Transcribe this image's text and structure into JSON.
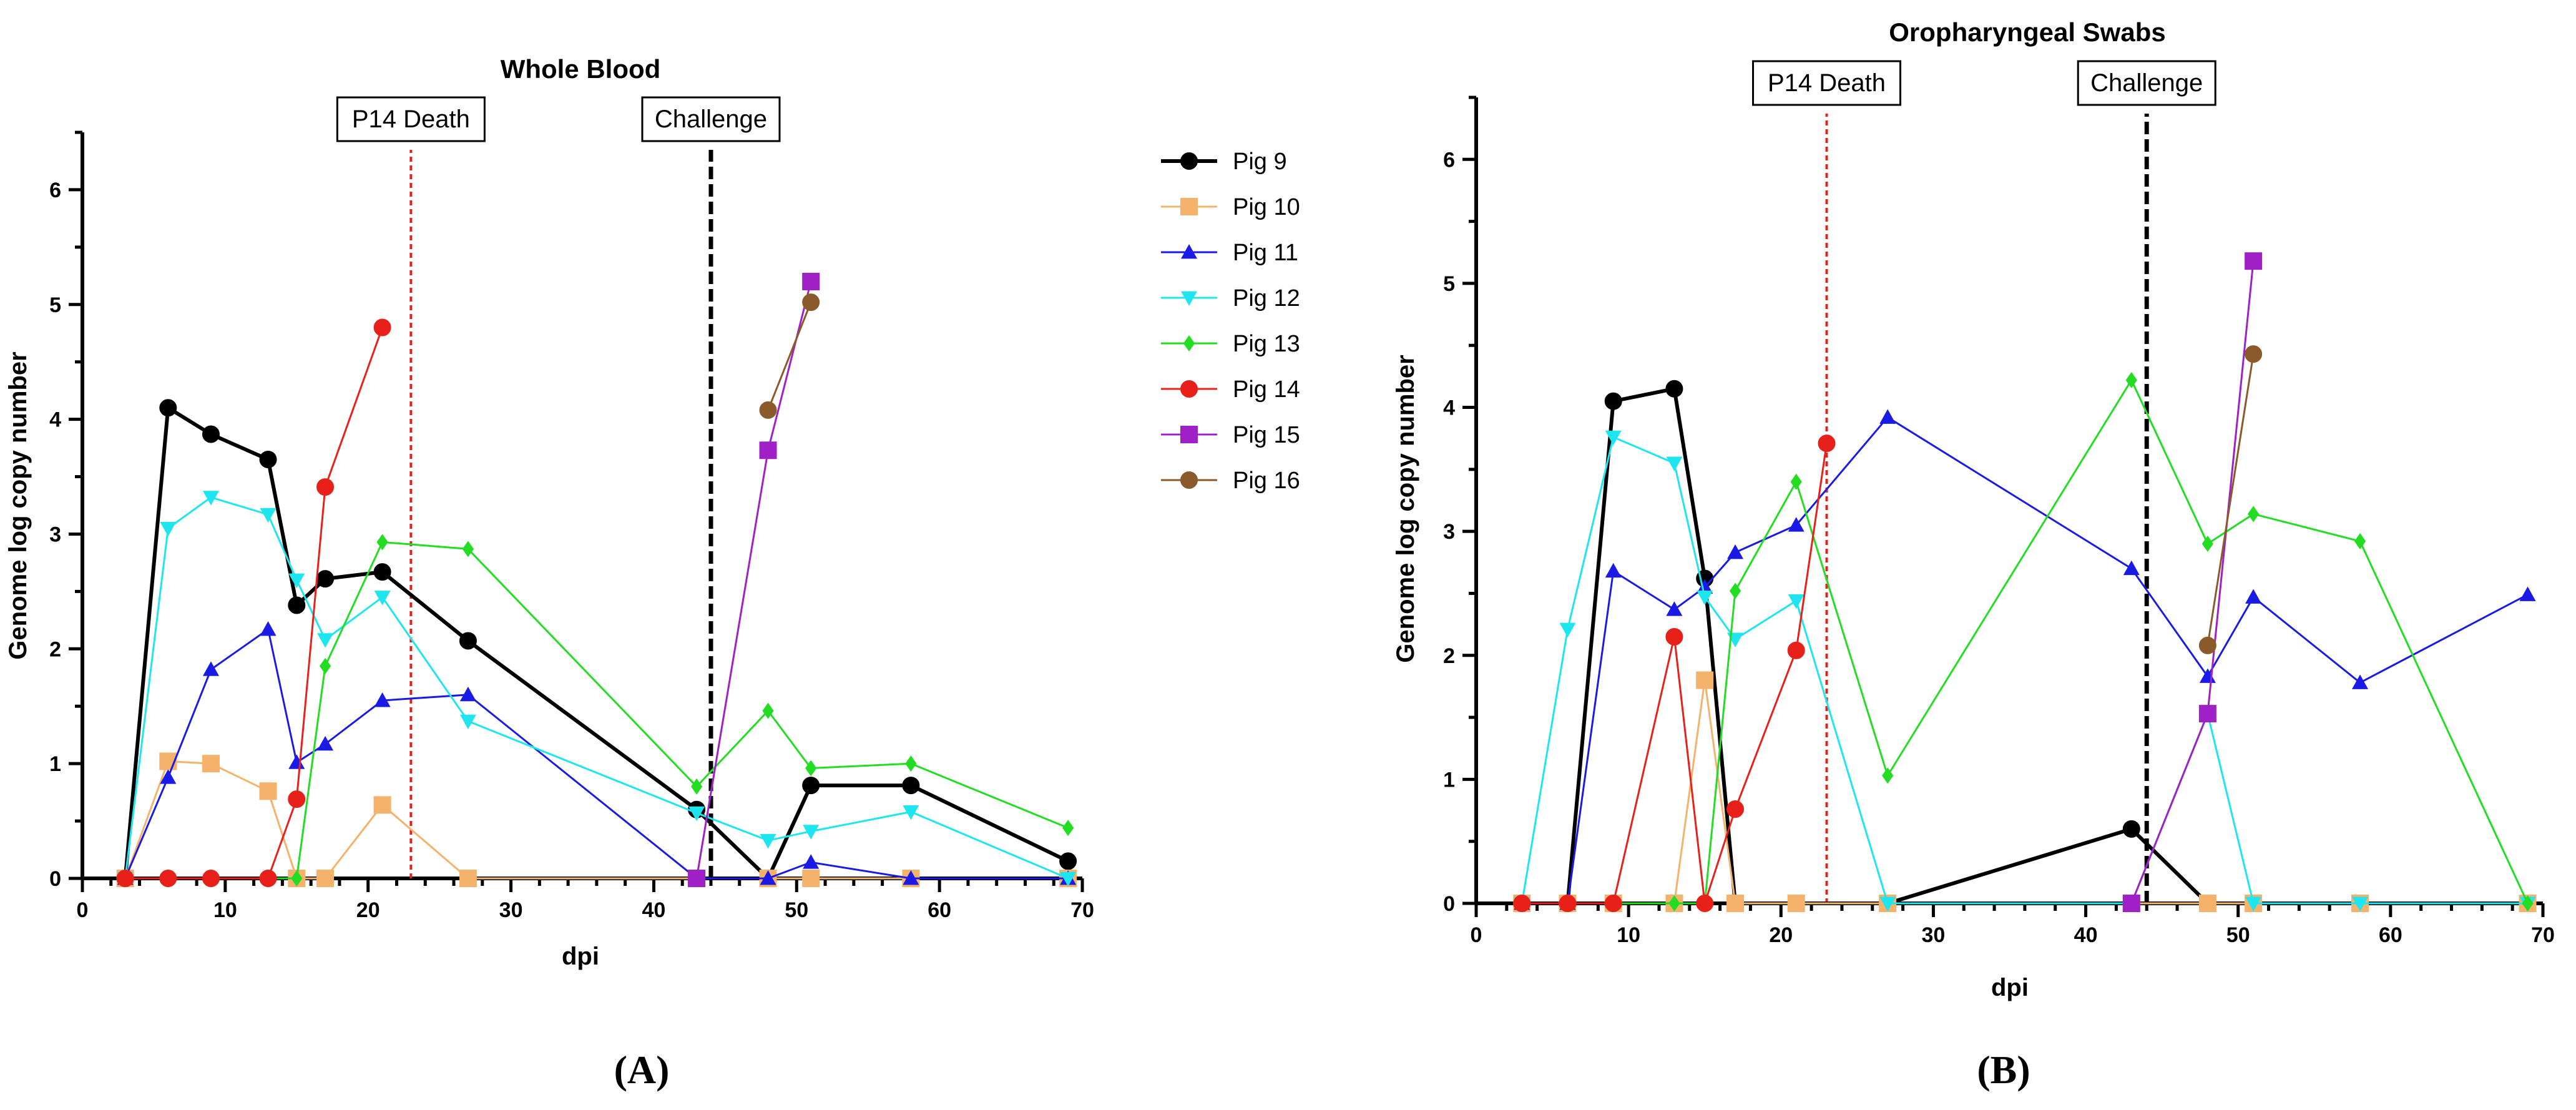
{
  "chart_data": [
    {
      "type": "line",
      "title": "Whole Blood",
      "xlabel": "dpi",
      "ylabel": "Genome log copy number",
      "xlim": [
        0,
        70
      ],
      "ylim": [
        0,
        6.5
      ],
      "xticks": [
        0,
        10,
        20,
        30,
        40,
        50,
        60,
        70
      ],
      "yticks": [
        0,
        1,
        2,
        3,
        4,
        5,
        6
      ],
      "panel_label": "(A)",
      "legend_position": "right",
      "annotations": [
        {
          "x": 23,
          "text": "P14 Death",
          "color": "#e8201a",
          "style": "dotted"
        },
        {
          "x": 44,
          "text": "Challenge",
          "color": "#000000",
          "style": "dashed"
        }
      ],
      "series": [
        {
          "name": "Pig 9",
          "color": "#000000",
          "marker": "circle",
          "x": [
            3,
            6,
            9,
            13,
            15,
            17,
            21,
            27,
            43,
            48,
            51,
            58,
            69
          ],
          "y": [
            0,
            4.1,
            3.87,
            3.65,
            2.38,
            2.61,
            2.67,
            2.07,
            0.6,
            0,
            0.81,
            0.81,
            0.15
          ]
        },
        {
          "name": "Pig 10",
          "color": "#f5b26b",
          "marker": "square",
          "x": [
            3,
            6,
            9,
            13,
            15,
            17,
            21,
            27,
            43,
            48,
            51,
            58,
            69
          ],
          "y": [
            0,
            1.02,
            1.0,
            0.76,
            0,
            0,
            0.64,
            0,
            0,
            0,
            0,
            0,
            0
          ]
        },
        {
          "name": "Pig 11",
          "color": "#1a1ae6",
          "marker": "triangle-up",
          "x": [
            3,
            6,
            9,
            13,
            15,
            17,
            21,
            27,
            43,
            48,
            51,
            58,
            69
          ],
          "y": [
            0,
            0.88,
            1.82,
            2.17,
            1.01,
            1.17,
            1.55,
            1.6,
            0,
            0,
            0.14,
            0,
            0
          ]
        },
        {
          "name": "Pig 12",
          "color": "#1ee6f0",
          "marker": "triangle-down",
          "x": [
            3,
            6,
            9,
            13,
            15,
            17,
            21,
            27,
            43,
            48,
            51,
            58,
            69
          ],
          "y": [
            0,
            3.05,
            3.32,
            3.17,
            2.6,
            2.08,
            2.45,
            1.37,
            0.57,
            0.33,
            0.41,
            0.58,
            0
          ]
        },
        {
          "name": "Pig 13",
          "color": "#22dd22",
          "marker": "diamond",
          "x": [
            3,
            6,
            9,
            13,
            15,
            17,
            21,
            27,
            43,
            48,
            51,
            58,
            69
          ],
          "y": [
            0,
            0,
            0,
            0,
            0,
            1.85,
            2.93,
            2.87,
            0.8,
            1.46,
            0.96,
            1.0,
            0.44
          ]
        },
        {
          "name": "Pig 14",
          "color": "#e8201a",
          "marker": "circle",
          "x": [
            3,
            6,
            9,
            13,
            15,
            17,
            21
          ],
          "y": [
            0,
            0,
            0,
            0,
            0.69,
            3.41,
            4.8
          ]
        },
        {
          "name": "Pig 15",
          "color": "#a020c8",
          "marker": "square",
          "x": [
            43,
            48,
            51
          ],
          "y": [
            0,
            3.73,
            5.2
          ]
        },
        {
          "name": "Pig 16",
          "color": "#8b5a2b",
          "marker": "hexagon",
          "x": [
            48,
            51
          ],
          "y": [
            4.08,
            5.02
          ]
        }
      ]
    },
    {
      "type": "line",
      "title": "Oropharyngeal Swabs",
      "xlabel": "dpi",
      "ylabel": "Genome log copy number",
      "xlim": [
        0,
        70
      ],
      "ylim": [
        0,
        6.5
      ],
      "xticks": [
        0,
        10,
        20,
        30,
        40,
        50,
        60,
        70
      ],
      "yticks": [
        0,
        1,
        2,
        3,
        4,
        5,
        6
      ],
      "panel_label": "(B)",
      "annotations": [
        {
          "x": 23,
          "text": "P14 Death",
          "color": "#e8201a",
          "style": "dotted"
        },
        {
          "x": 44,
          "text": "Challenge",
          "color": "#000000",
          "style": "dashed"
        }
      ],
      "series": [
        {
          "name": "Pig 9",
          "color": "#000000",
          "marker": "circle",
          "x": [
            3,
            6,
            9,
            13,
            15,
            17,
            21,
            27,
            43,
            48,
            51,
            58,
            69
          ],
          "y": [
            0,
            0,
            4.05,
            4.15,
            2.62,
            0,
            0,
            0,
            0.6,
            0,
            0,
            0,
            0
          ]
        },
        {
          "name": "Pig 10",
          "color": "#f5b26b",
          "marker": "square",
          "x": [
            3,
            6,
            9,
            13,
            15,
            17,
            21,
            27,
            43,
            48,
            51,
            58,
            69
          ],
          "y": [
            0,
            0,
            0,
            0,
            1.8,
            0,
            0,
            0,
            0,
            0,
            0,
            0,
            0
          ]
        },
        {
          "name": "Pig 11",
          "color": "#1a1ae6",
          "marker": "triangle-up",
          "x": [
            3,
            6,
            9,
            13,
            15,
            17,
            21,
            27,
            43,
            48,
            51,
            58,
            69
          ],
          "y": [
            0,
            0,
            2.68,
            2.37,
            2.55,
            2.83,
            3.05,
            3.92,
            2.7,
            1.83,
            2.47,
            1.78,
            2.49
          ]
        },
        {
          "name": "Pig 12",
          "color": "#1ee6f0",
          "marker": "triangle-down",
          "x": [
            3,
            6,
            9,
            13,
            15,
            17,
            21,
            27,
            43,
            48,
            51,
            58,
            69
          ],
          "y": [
            0,
            2.21,
            3.76,
            3.55,
            2.47,
            2.13,
            2.44,
            0,
            0,
            1.53,
            0,
            0,
            0
          ]
        },
        {
          "name": "Pig 13",
          "color": "#22dd22",
          "marker": "diamond",
          "x": [
            3,
            6,
            9,
            13,
            15,
            17,
            21,
            27,
            43,
            48,
            51,
            58,
            69
          ],
          "y": [
            0,
            0,
            0,
            0,
            0,
            2.52,
            3.4,
            1.03,
            4.22,
            2.9,
            3.14,
            2.92,
            0
          ]
        },
        {
          "name": "Pig 14",
          "color": "#e8201a",
          "marker": "circle",
          "x": [
            3,
            6,
            9,
            13,
            15,
            17,
            21,
            23
          ],
          "y": [
            0,
            0,
            0,
            2.15,
            0,
            0.76,
            2.04,
            3.71
          ]
        },
        {
          "name": "Pig 15",
          "color": "#a020c8",
          "marker": "square",
          "x": [
            43,
            48,
            51
          ],
          "y": [
            0,
            1.53,
            5.18
          ]
        },
        {
          "name": "Pig 16",
          "color": "#8b5a2b",
          "marker": "hexagon",
          "x": [
            48,
            51
          ],
          "y": [
            2.08,
            4.43
          ]
        }
      ]
    }
  ]
}
